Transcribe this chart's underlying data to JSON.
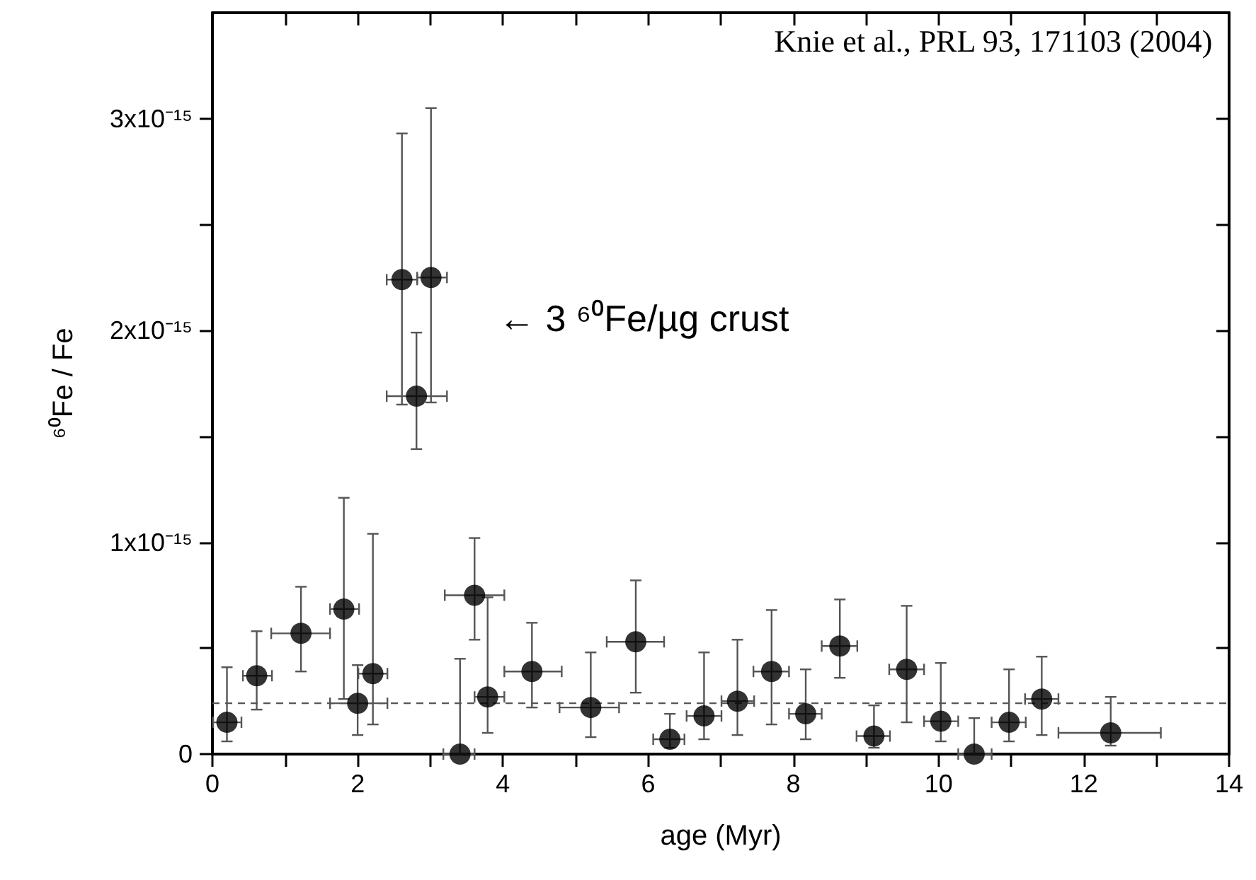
{
  "chart_data": {
    "type": "scatter",
    "xlabel": "age (Myr)",
    "ylabel": "⁶⁰Fe / Fe",
    "annotations": [
      "Knie et al., PRL 93, 171103 (2004)",
      "← 3 ⁶⁰Fe/µg crust"
    ],
    "x": [
      2.61,
      3.01,
      2.81,
      0.2,
      0.61,
      1.22,
      1.81,
      2.0,
      2.21,
      3.41,
      3.61,
      3.79,
      4.4,
      5.21,
      5.83,
      6.3,
      6.77,
      7.23,
      7.7,
      8.17,
      8.64,
      9.11,
      9.56,
      10.03,
      10.49,
      10.97,
      11.42,
      12.37
    ],
    "values": [
      2.24e-15,
      2.25e-15,
      1.69e-15,
      1.5e-16,
      3.7e-16,
      5.7e-16,
      6.85e-16,
      2.4e-16,
      3.8e-16,
      0,
      7.5e-16,
      2.7e-16,
      3.9e-16,
      2.2e-16,
      5.3e-16,
      7e-17,
      1.8e-16,
      2.5e-16,
      3.9e-16,
      1.9e-16,
      5.1e-16,
      8.5e-17,
      4e-16,
      1.55e-16,
      0,
      1.5e-16,
      2.6e-16,
      1e-16
    ],
    "errors": [
      [
        1.65e-15,
        2.93e-15
      ],
      [
        1.66e-15,
        3.05e-15
      ],
      [
        1.44e-15,
        1.99e-15
      ],
      [
        6e-17,
        4.1e-16
      ],
      [
        2.1e-16,
        5.8e-16
      ],
      [
        3.9e-16,
        7.9e-16
      ],
      [
        2.6e-16,
        1.21e-15
      ],
      [
        9e-17,
        4.2e-16
      ],
      [
        1.4e-16,
        1.04e-15
      ],
      [
        0,
        4.5e-16
      ],
      [
        5.4e-16,
        1.02e-15
      ],
      [
        1e-16,
        7.4e-16
      ],
      [
        2.2e-16,
        6.2e-16
      ],
      [
        8e-17,
        4.8e-16
      ],
      [
        2.9e-16,
        8.2e-16
      ],
      [
        3e-17,
        1.9e-16
      ],
      [
        7e-17,
        4.8e-16
      ],
      [
        9e-17,
        5.4e-16
      ],
      [
        1.4e-16,
        6.8e-16
      ],
      [
        7e-17,
        4e-16
      ],
      [
        3.6e-16,
        7.3e-16
      ],
      [
        3e-17,
        2.3e-16
      ],
      [
        1.5e-16,
        7e-16
      ],
      [
        6e-17,
        4.3e-16
      ],
      [
        0,
        1.7e-16
      ],
      [
        6e-17,
        4e-16
      ],
      [
        9e-17,
        4.6e-16
      ],
      [
        4e-17,
        2.7e-16
      ]
    ],
    "xerrors": [
      [
        2.4,
        2.82
      ],
      [
        2.82,
        3.23
      ],
      [
        2.4,
        3.23
      ],
      [
        0.01,
        0.4
      ],
      [
        0.42,
        0.82
      ],
      [
        0.81,
        1.62
      ],
      [
        1.62,
        2.02
      ],
      [
        1.62,
        2.41
      ],
      [
        2.01,
        2.41
      ],
      [
        3.18,
        3.61
      ],
      [
        3.2,
        4.02
      ],
      [
        3.61,
        4.02
      ],
      [
        4.02,
        4.81
      ],
      [
        4.78,
        5.6
      ],
      [
        5.43,
        6.22
      ],
      [
        6.07,
        6.5
      ],
      [
        6.53,
        7.01
      ],
      [
        7.01,
        7.46
      ],
      [
        7.45,
        7.94
      ],
      [
        7.94,
        8.39
      ],
      [
        8.39,
        8.88
      ],
      [
        8.87,
        9.33
      ],
      [
        9.32,
        9.8
      ],
      [
        9.8,
        10.27
      ],
      [
        10.27,
        10.73
      ],
      [
        10.73,
        11.2
      ],
      [
        11.19,
        11.65
      ],
      [
        11.65,
        13.06
      ]
    ],
    "color": "#000000",
    "marker": "circle",
    "xlim": [
      0,
      14
    ],
    "xticks": [
      0,
      {
        "value": 1,
        "label": null
      },
      2,
      {
        "value": 3,
        "label": null
      },
      4,
      {
        "value": 5,
        "label": null
      },
      6,
      {
        "value": 7,
        "label": null
      },
      8,
      {
        "value": 9,
        "label": null
      },
      10,
      {
        "value": 11,
        "label": null
      },
      12,
      {
        "value": 13,
        "label": null
      },
      14
    ],
    "ylim": [
      0,
      3.5e-15
    ],
    "yticks": [
      0,
      {
        "value": 5e-16,
        "label": null
      },
      {
        "value": 1e-15,
        "label": "1x10⁻¹⁵"
      },
      {
        "value": 1.5e-15,
        "label": null
      },
      {
        "value": 2e-15,
        "label": "2x10⁻¹⁵"
      },
      {
        "value": 2.5e-15,
        "label": null
      },
      {
        "value": 3e-15,
        "label": "3x10⁻¹⁵"
      }
    ],
    "ref_lines": [
      {
        "axis": "y",
        "value": 2.4e-16,
        "color": "#555555",
        "line_style": "dashed"
      }
    ]
  }
}
